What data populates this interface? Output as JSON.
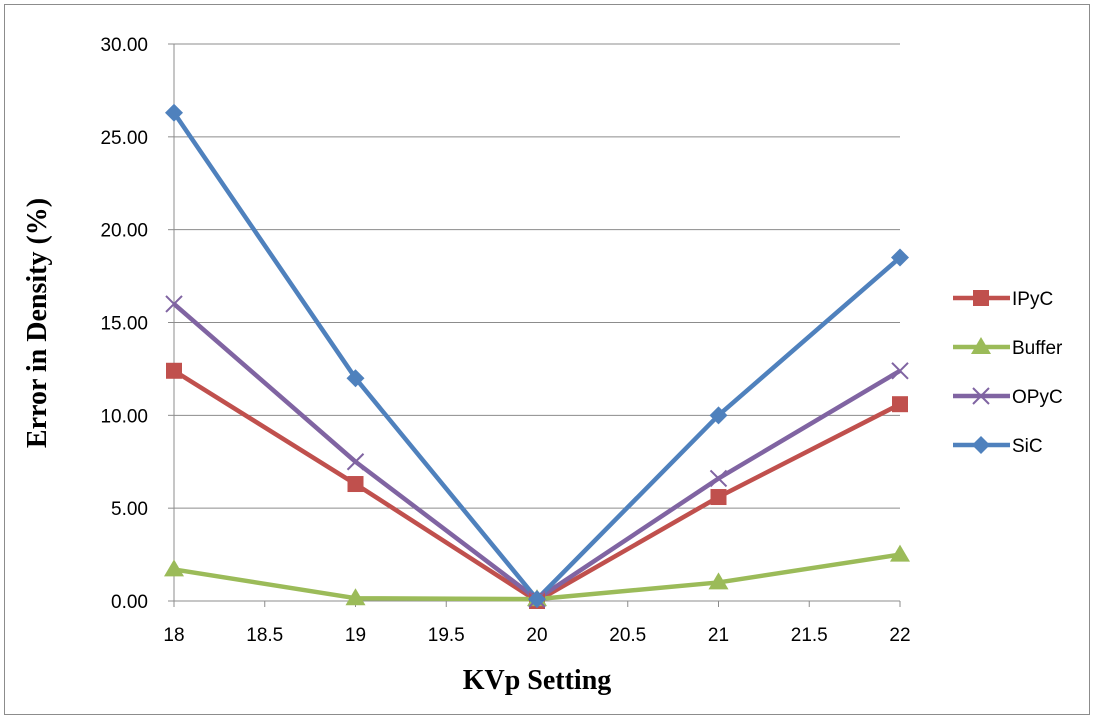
{
  "chart_data": {
    "type": "line",
    "xlabel": "KVp Setting",
    "ylabel": "Error in Density (%)",
    "xlim": [
      18,
      22
    ],
    "ylim": [
      0,
      30
    ],
    "x_ticks": [
      "18",
      "18.5",
      "19",
      "19.5",
      "20",
      "20.5",
      "21",
      "21.5",
      "22"
    ],
    "y_ticks": [
      "0.00",
      "5.00",
      "10.00",
      "15.00",
      "20.00",
      "25.00",
      "30.00"
    ],
    "grid": "horizontal",
    "legend_position": "right",
    "series": [
      {
        "name": "IPyC",
        "color": "#c0504d",
        "marker": "square",
        "x": [
          18,
          19,
          20,
          21,
          22
        ],
        "values": [
          12.4,
          6.3,
          0.0,
          5.6,
          10.6
        ]
      },
      {
        "name": "Buffer",
        "color": "#9bbb59",
        "marker": "triangle",
        "x": [
          18,
          19,
          20,
          21,
          22
        ],
        "values": [
          1.7,
          0.15,
          0.1,
          1.0,
          2.5
        ]
      },
      {
        "name": "OPyC",
        "color": "#8064a2",
        "marker": "x",
        "x": [
          18,
          19,
          20,
          21,
          22
        ],
        "values": [
          16.0,
          7.5,
          0.1,
          6.6,
          12.4
        ]
      },
      {
        "name": "SiC",
        "color": "#4f81bd",
        "marker": "diamond",
        "x": [
          18,
          19,
          20,
          21,
          22
        ],
        "values": [
          26.3,
          12.0,
          0.1,
          10.0,
          18.5
        ]
      }
    ]
  }
}
